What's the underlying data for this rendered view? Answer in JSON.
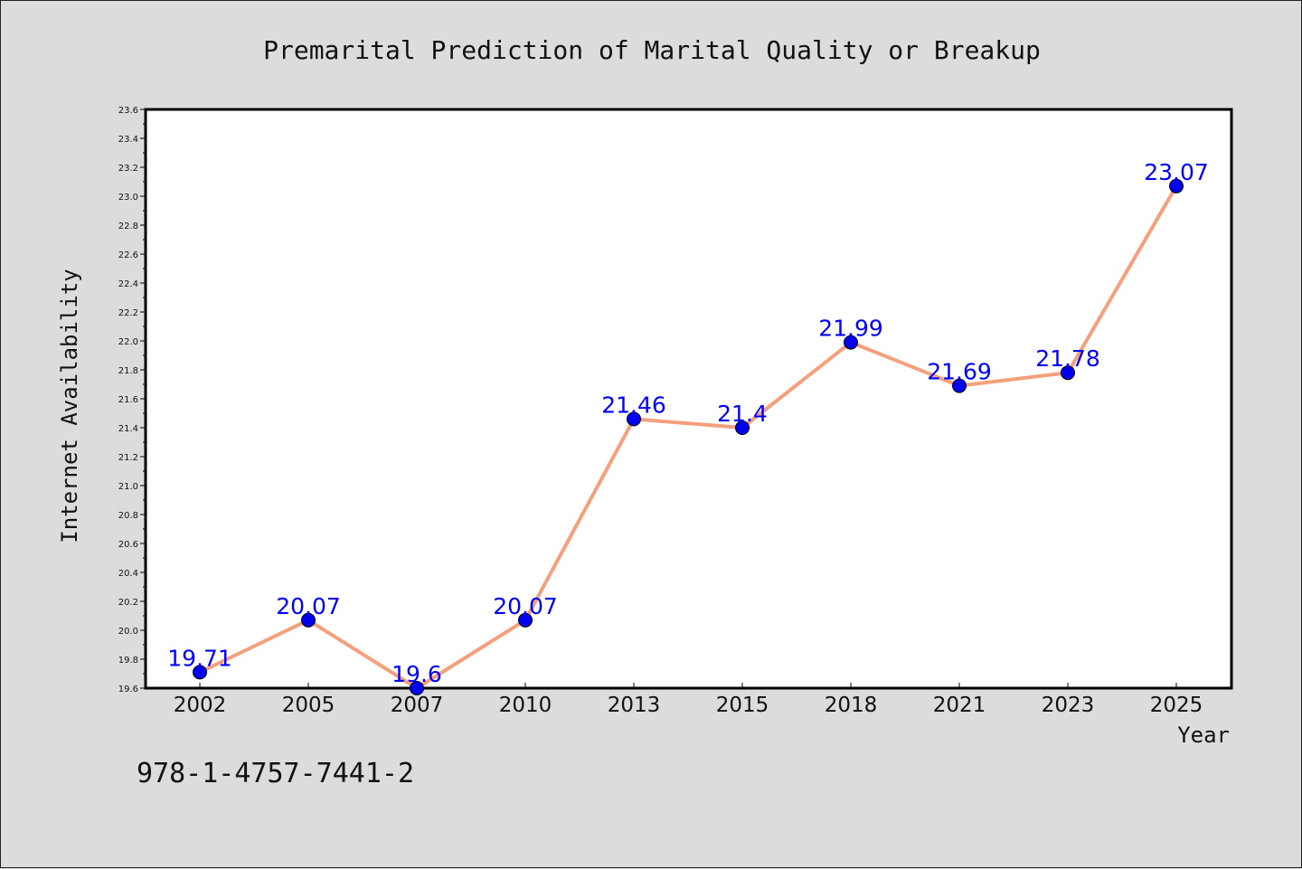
{
  "chart_data": {
    "type": "line",
    "title": "Premarital Prediction of Marital Quality or Breakup",
    "xlabel": "Year",
    "ylabel": "Internet Availability",
    "categories": [
      "2002",
      "2005",
      "2007",
      "2010",
      "2013",
      "2015",
      "2018",
      "2021",
      "2023",
      "2025"
    ],
    "series": [
      {
        "values": [
          19.71,
          20.07,
          19.6,
          20.07,
          21.46,
          21.4,
          21.99,
          21.69,
          21.78,
          23.07
        ],
        "data_labels": [
          "19.71",
          "20.07",
          "19.6",
          "20.07",
          "21.46",
          "21.4",
          "21.99",
          "21.69",
          "21.78",
          "23.07"
        ],
        "line_color": "#f4a07c",
        "marker_color": "#0000ee",
        "label_color": "#0000ff"
      }
    ],
    "ylim": [
      19.6,
      23.6
    ],
    "yticks": [
      "19.6",
      "19.8",
      "20.0",
      "20.2",
      "20.4",
      "20.6",
      "20.8",
      "21.0",
      "21.2",
      "21.4",
      "21.6",
      "21.8",
      "22.0",
      "22.2",
      "22.4",
      "22.6",
      "22.8",
      "23.0",
      "23.2",
      "23.4",
      "23.6"
    ],
    "grid": false,
    "legend": "none",
    "background_color": "#dcdcdc",
    "plot_background_color": "#ffffff"
  },
  "annotation": {
    "isbn": "978-1-4757-7441-2"
  }
}
